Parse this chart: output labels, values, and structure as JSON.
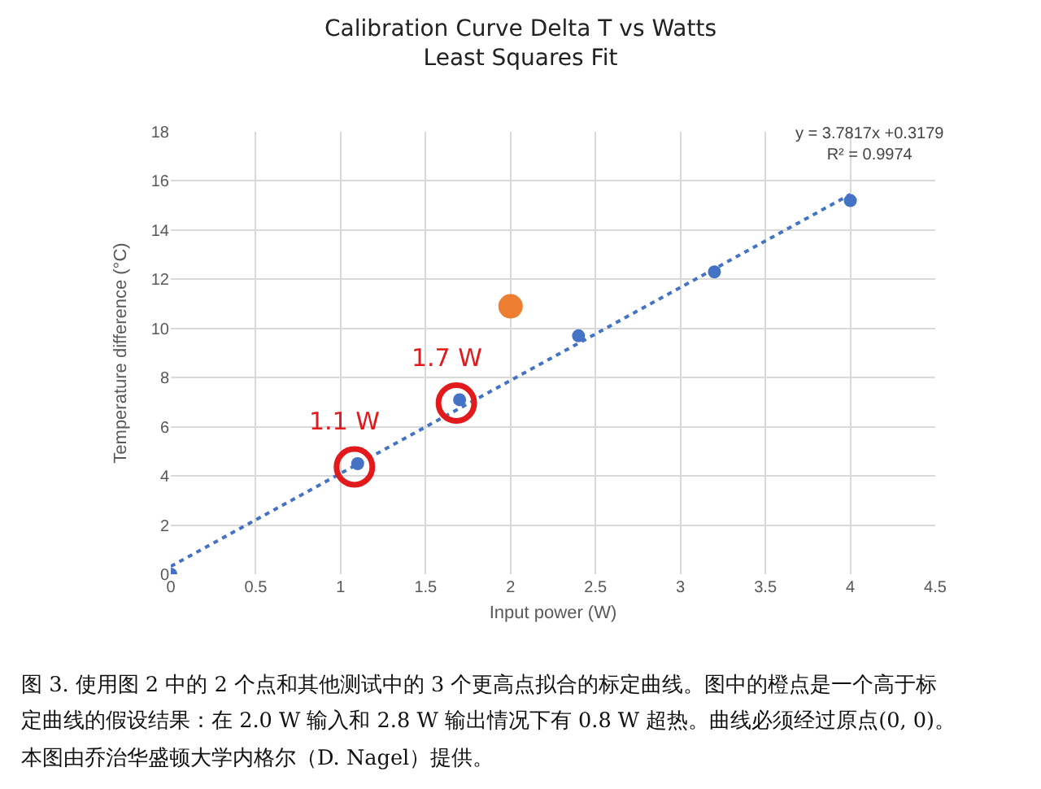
{
  "chart_data": {
    "type": "scatter",
    "title": "Calibration Curve Delta T vs Watts\nLeast Squares Fit",
    "xlabel": "Input power (W)",
    "ylabel": "Temperature difference (°C)",
    "xlim": [
      0,
      4.5
    ],
    "xticks": [
      0,
      0.5,
      1,
      1.5,
      2,
      2.5,
      3,
      3.5,
      4,
      4.5
    ],
    "ylim": [
      0,
      18
    ],
    "yticks": [
      0,
      2,
      4,
      6,
      8,
      10,
      12,
      14,
      16,
      18
    ],
    "grid": true,
    "marker": "circle",
    "series": [
      {
        "type": "scatter",
        "color": "#4472c4",
        "x": [
          0,
          1.1,
          1.7,
          2.4,
          3.2,
          4.0
        ],
        "values": [
          0,
          4.5,
          7.1,
          9.7,
          12.3,
          15.2
        ]
      },
      {
        "type": "scatter",
        "color": "#ed7d31",
        "x": [
          2.0
        ],
        "values": [
          10.9
        ]
      },
      {
        "type": "line",
        "color": "#4472c4",
        "line_style": "dotted",
        "marker": "none",
        "x": [
          0,
          4
        ],
        "values": [
          0.32,
          15.45
        ]
      }
    ],
    "annotations": [
      {
        "text": "1.1 W",
        "x": 1.1,
        "y": 4.5
      },
      {
        "text": "1.7 W",
        "x": 1.7,
        "y": 7.1
      },
      "y = 3.7817x +0.3179\nR² = 0.9974",
      "图 3. 使用图 2 中的 2 个点和其他测试中的 3 个更高点拟合的标定曲线。图中的橙点是一个高于标",
      "定曲线的假设结果：在 2.0 W 输入和 2.8 W 输出情况下有 0.8 W 超热。曲线必须经过原点(0, 0)。",
      "本图由乔治华盛顿大学内格尔（D. Nagel）提供。"
    ]
  }
}
